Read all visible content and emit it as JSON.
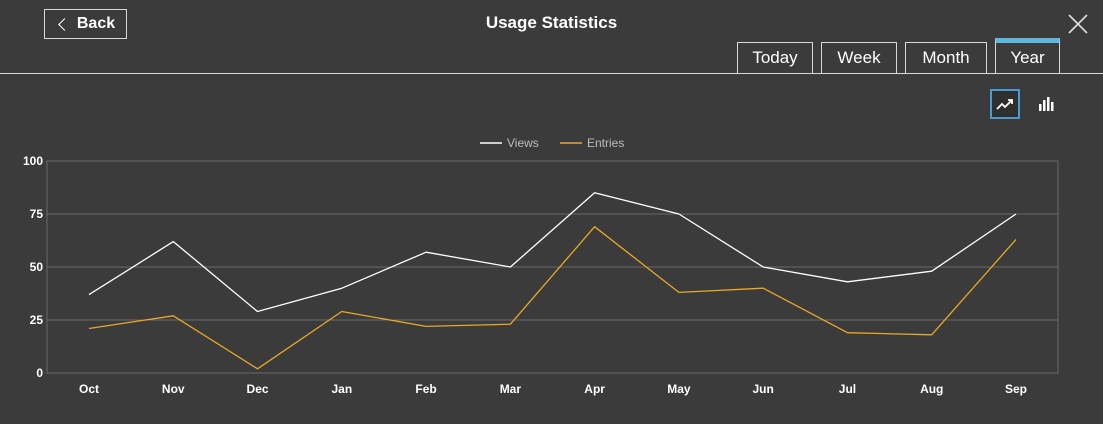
{
  "header": {
    "back_label": "Back",
    "title": "Usage Statistics"
  },
  "tabs": [
    {
      "label": "Today",
      "active": false
    },
    {
      "label": "Week",
      "active": false
    },
    {
      "label": "Month",
      "active": false
    },
    {
      "label": "Year",
      "active": true
    }
  ],
  "view_toggle": {
    "line_icon": "trending-line-icon",
    "bar_icon": "bar-chart-icon",
    "active": "line"
  },
  "colors": {
    "background": "#3b3b3b",
    "views": "#ffffff",
    "entries": "#e9a825",
    "grid": "#6a6a6a",
    "active_tab_accent": "#5fb8e0",
    "active_view_border": "#4a9ad6"
  },
  "chart_data": {
    "type": "line",
    "categories": [
      "Oct",
      "Nov",
      "Dec",
      "Jan",
      "Feb",
      "Mar",
      "Apr",
      "May",
      "Jun",
      "Jul",
      "Aug",
      "Sep"
    ],
    "series": [
      {
        "name": "Views",
        "color": "#ffffff",
        "values": [
          37,
          62,
          29,
          40,
          57,
          50,
          85,
          75,
          50,
          43,
          48,
          75
        ]
      },
      {
        "name": "Entries",
        "color": "#e9a825",
        "values": [
          21,
          27,
          2,
          29,
          22,
          23,
          69,
          38,
          40,
          19,
          18,
          63
        ]
      }
    ],
    "ylim": [
      0,
      100
    ],
    "yticks": [
      0,
      25,
      50,
      75,
      100
    ],
    "grid": true,
    "legend": "top-center"
  }
}
